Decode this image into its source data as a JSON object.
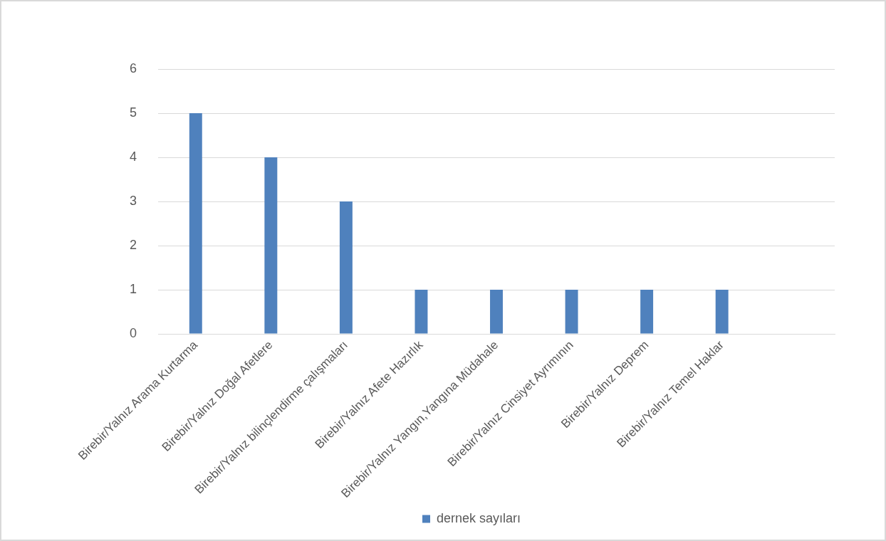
{
  "chart_data": {
    "type": "bar",
    "categories": [
      "Birebir/Yalnız Arama Kurtarma",
      "Birebir/Yalnız Doğal Afetlere",
      "Birebir/Yalnız bilinçlendirme çalışmaları",
      "Birebir/Yalnız Afete Hazırlık",
      "Birebir/Yalnız Yangın,Yangına Müdahale",
      "Birebir/Yalnız Cinsiyet Ayrımının",
      "Birebir/Yalnız Deprem",
      "Birebir/Yalnız Temel Haklar",
      null
    ],
    "series": [
      {
        "name": "dernek sayıları",
        "color": "#4f81bd",
        "values": [
          5,
          4,
          3,
          1,
          1,
          1,
          1,
          1,
          null
        ]
      }
    ],
    "ylim": [
      0,
      6
    ],
    "yticks": [
      0,
      1,
      2,
      3,
      4,
      5,
      6
    ],
    "grid": "y",
    "legend": "bottom"
  }
}
